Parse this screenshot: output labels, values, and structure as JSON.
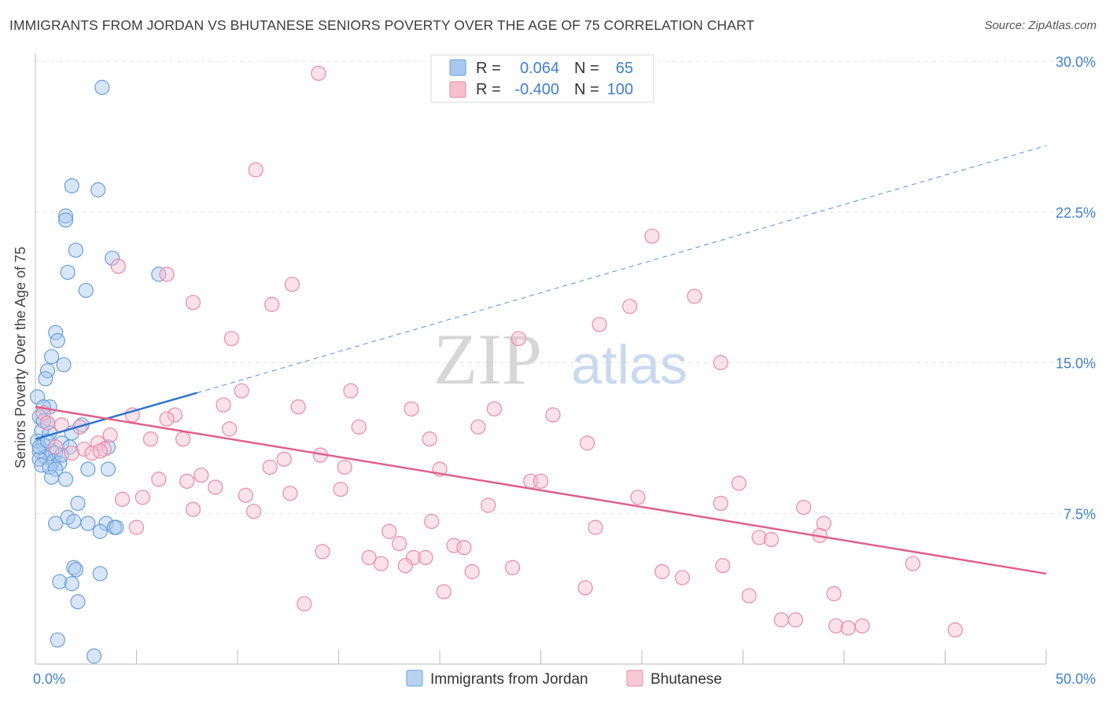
{
  "title": "IMMIGRANTS FROM JORDAN VS BHUTANESE SENIORS POVERTY OVER THE AGE OF 75 CORRELATION CHART",
  "source": "Source: ZipAtlas.com",
  "watermark": {
    "zip": "ZIP",
    "atlas": "atlas"
  },
  "legend_top": [
    {
      "r_label": "R =",
      "r_value": "0.064",
      "n_label": "N =",
      "n_value": "65",
      "color": "#a9c8ef",
      "stroke": "#6a9fd8"
    },
    {
      "r_label": "R =",
      "r_value": "-0.400",
      "n_label": "N =",
      "n_value": "100",
      "color": "#f6bfd0",
      "stroke": "#e88aa7"
    }
  ],
  "legend_bottom": [
    {
      "label": "Immigrants from Jordan",
      "color": "#b8d3f2",
      "stroke": "#6a9fd8"
    },
    {
      "label": "Bhutanese",
      "color": "#f8c8d6",
      "stroke": "#e88aa7"
    }
  ],
  "chart_data": {
    "type": "scatter",
    "ylabel": "Seniors Poverty Over the Age of 75",
    "xlabel": "",
    "xlim": [
      0,
      50
    ],
    "ylim": [
      0,
      30
    ],
    "x_tick_labels": [
      "0.0%",
      "50.0%"
    ],
    "y_ticks": [
      7.5,
      15.0,
      22.5,
      30.0
    ],
    "y_tick_labels": [
      "7.5%",
      "15.0%",
      "22.5%",
      "30.0%"
    ],
    "grid": true,
    "series": [
      {
        "name": "Immigrants from Jordan",
        "color": "#a9c8ef",
        "stroke": "#6a9fd8",
        "trend": {
          "x0": 0,
          "y0": 11.2,
          "x1": 8.0,
          "y1": 13.5,
          "dash_to_x": 50,
          "dash_to_y": 25.8,
          "color": "#2f74d0"
        },
        "points": [
          [
            3.3,
            28.7
          ],
          [
            1.8,
            23.8
          ],
          [
            3.1,
            23.6
          ],
          [
            1.5,
            22.3
          ],
          [
            1.5,
            22.1
          ],
          [
            2.0,
            20.6
          ],
          [
            3.8,
            20.2
          ],
          [
            1.6,
            19.5
          ],
          [
            6.1,
            19.4
          ],
          [
            2.5,
            18.6
          ],
          [
            1.0,
            16.5
          ],
          [
            1.1,
            16.1
          ],
          [
            0.8,
            15.3
          ],
          [
            1.4,
            14.9
          ],
          [
            0.6,
            14.6
          ],
          [
            0.5,
            14.2
          ],
          [
            0.1,
            13.3
          ],
          [
            0.7,
            12.8
          ],
          [
            0.4,
            12.8
          ],
          [
            0.2,
            12.3
          ],
          [
            0.6,
            12.0
          ],
          [
            2.3,
            11.9
          ],
          [
            0.3,
            11.6
          ],
          [
            0.7,
            11.5
          ],
          [
            1.8,
            11.5
          ],
          [
            0.1,
            11.1
          ],
          [
            1.3,
            11.0
          ],
          [
            0.4,
            10.9
          ],
          [
            1.7,
            10.8
          ],
          [
            3.6,
            10.8
          ],
          [
            0.2,
            10.6
          ],
          [
            0.8,
            10.6
          ],
          [
            1.0,
            10.5
          ],
          [
            0.5,
            10.3
          ],
          [
            0.2,
            10.2
          ],
          [
            0.9,
            10.1
          ],
          [
            1.2,
            10.0
          ],
          [
            0.3,
            9.9
          ],
          [
            0.7,
            9.8
          ],
          [
            1.0,
            9.7
          ],
          [
            2.6,
            9.7
          ],
          [
            3.6,
            9.7
          ],
          [
            0.8,
            9.3
          ],
          [
            1.5,
            9.2
          ],
          [
            2.1,
            8.0
          ],
          [
            1.6,
            7.3
          ],
          [
            1.9,
            7.1
          ],
          [
            1.0,
            7.0
          ],
          [
            2.6,
            7.0
          ],
          [
            3.5,
            7.0
          ],
          [
            3.9,
            6.8
          ],
          [
            4.0,
            6.8
          ],
          [
            3.2,
            6.6
          ],
          [
            1.9,
            4.8
          ],
          [
            2.0,
            4.7
          ],
          [
            3.2,
            4.5
          ],
          [
            1.2,
            4.1
          ],
          [
            1.8,
            4.0
          ],
          [
            2.1,
            3.1
          ],
          [
            1.1,
            1.2
          ],
          [
            2.9,
            0.4
          ],
          [
            0.2,
            10.8
          ],
          [
            0.6,
            11.1
          ],
          [
            1.3,
            10.4
          ],
          [
            0.4,
            12.1
          ]
        ]
      },
      {
        "name": "Bhutanese",
        "color": "#f6bfd0",
        "stroke": "#e88aa7",
        "trend": {
          "x0": 0,
          "y0": 12.8,
          "x1": 50,
          "y1": 4.5,
          "color": "#e0608a"
        },
        "points": [
          [
            14.0,
            29.4
          ],
          [
            10.9,
            24.6
          ],
          [
            30.5,
            21.3
          ],
          [
            4.1,
            19.8
          ],
          [
            6.5,
            19.4
          ],
          [
            12.7,
            18.9
          ],
          [
            7.8,
            18.0
          ],
          [
            11.7,
            17.9
          ],
          [
            29.4,
            17.8
          ],
          [
            32.6,
            18.3
          ],
          [
            27.9,
            16.9
          ],
          [
            9.7,
            16.2
          ],
          [
            23.9,
            16.2
          ],
          [
            33.9,
            15.0
          ],
          [
            10.2,
            13.6
          ],
          [
            15.6,
            13.6
          ],
          [
            9.3,
            12.9
          ],
          [
            13.0,
            12.8
          ],
          [
            18.6,
            12.7
          ],
          [
            22.7,
            12.7
          ],
          [
            0.4,
            12.5
          ],
          [
            4.8,
            12.4
          ],
          [
            6.9,
            12.4
          ],
          [
            25.6,
            12.4
          ],
          [
            6.5,
            12.2
          ],
          [
            0.6,
            12.0
          ],
          [
            1.3,
            11.9
          ],
          [
            2.2,
            11.8
          ],
          [
            9.6,
            11.7
          ],
          [
            16.0,
            11.8
          ],
          [
            21.9,
            11.8
          ],
          [
            3.7,
            11.4
          ],
          [
            5.7,
            11.2
          ],
          [
            7.3,
            11.2
          ],
          [
            19.5,
            11.2
          ],
          [
            27.3,
            11.0
          ],
          [
            3.1,
            11.0
          ],
          [
            1.0,
            10.8
          ],
          [
            2.4,
            10.7
          ],
          [
            3.4,
            10.7
          ],
          [
            2.8,
            10.5
          ],
          [
            14.1,
            10.4
          ],
          [
            1.8,
            10.5
          ],
          [
            12.3,
            10.2
          ],
          [
            11.6,
            9.8
          ],
          [
            15.3,
            9.8
          ],
          [
            20.0,
            9.7
          ],
          [
            8.2,
            9.4
          ],
          [
            6.1,
            9.2
          ],
          [
            7.5,
            9.1
          ],
          [
            24.5,
            9.1
          ],
          [
            25.0,
            9.1
          ],
          [
            34.8,
            9.0
          ],
          [
            8.9,
            8.8
          ],
          [
            15.1,
            8.7
          ],
          [
            12.6,
            8.5
          ],
          [
            10.4,
            8.4
          ],
          [
            5.3,
            8.3
          ],
          [
            4.3,
            8.2
          ],
          [
            29.8,
            8.3
          ],
          [
            33.9,
            8.0
          ],
          [
            22.4,
            7.9
          ],
          [
            38.0,
            7.8
          ],
          [
            7.8,
            7.7
          ],
          [
            10.8,
            7.6
          ],
          [
            19.6,
            7.1
          ],
          [
            39.0,
            7.0
          ],
          [
            5.0,
            6.8
          ],
          [
            27.7,
            6.8
          ],
          [
            17.5,
            6.6
          ],
          [
            35.8,
            6.3
          ],
          [
            36.4,
            6.2
          ],
          [
            38.8,
            6.4
          ],
          [
            18.0,
            6.0
          ],
          [
            20.7,
            5.9
          ],
          [
            21.2,
            5.8
          ],
          [
            14.2,
            5.6
          ],
          [
            16.5,
            5.3
          ],
          [
            18.7,
            5.3
          ],
          [
            19.3,
            5.3
          ],
          [
            17.1,
            5.0
          ],
          [
            18.3,
            4.9
          ],
          [
            23.6,
            4.8
          ],
          [
            34.0,
            4.9
          ],
          [
            43.4,
            5.0
          ],
          [
            21.6,
            4.6
          ],
          [
            31.0,
            4.6
          ],
          [
            32.0,
            4.3
          ],
          [
            27.2,
            3.8
          ],
          [
            20.2,
            3.6
          ],
          [
            35.3,
            3.4
          ],
          [
            39.5,
            3.5
          ],
          [
            13.3,
            3.0
          ],
          [
            36.9,
            2.2
          ],
          [
            37.6,
            2.2
          ],
          [
            39.6,
            1.9
          ],
          [
            40.2,
            1.8
          ],
          [
            40.9,
            1.9
          ],
          [
            45.5,
            1.7
          ],
          [
            3.2,
            10.6
          ]
        ]
      }
    ]
  }
}
